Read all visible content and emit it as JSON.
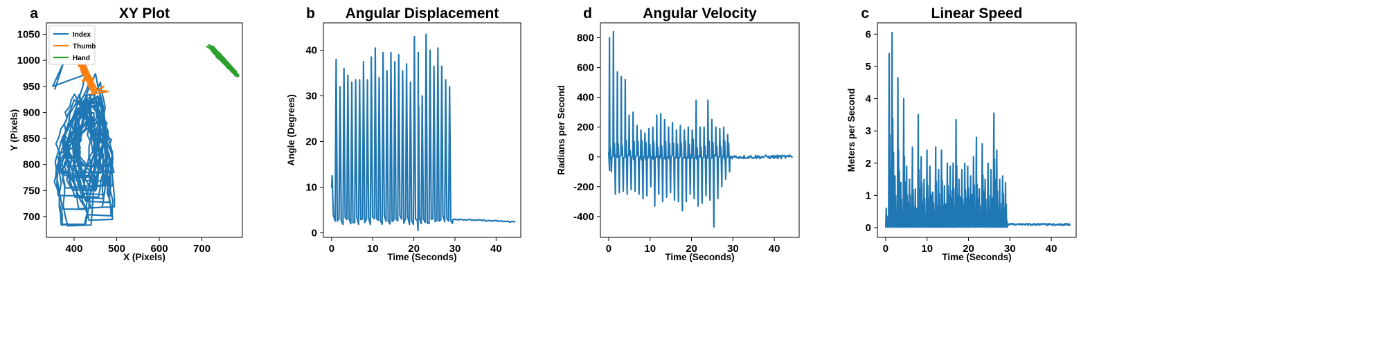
{
  "chart_data": [
    {
      "type": "line",
      "letter": "a",
      "title": "XY Plot",
      "xlabel": "X (Pixels)",
      "ylabel": "Y (Pixels)",
      "xlim": [
        335,
        795
      ],
      "ylim": [
        660,
        1072
      ],
      "xticks": [
        400,
        500,
        600,
        700
      ],
      "yticks": [
        700,
        750,
        800,
        850,
        900,
        950,
        1000,
        1050
      ],
      "legend_position": "top-left",
      "series": [
        {
          "name": "Index",
          "color": "#1f77b4",
          "kind": "index_trace"
        },
        {
          "name": "Thumb",
          "color": "#ff7f0e",
          "kind": "thumb_trace"
        },
        {
          "name": "Hand",
          "color": "#2ca02c",
          "kind": "hand_trace"
        }
      ]
    },
    {
      "type": "line",
      "letter": "b",
      "title": "Angular Displacement",
      "xlabel": "Time (Seconds)",
      "ylabel": "Angle (Degrees)",
      "xlim": [
        -2,
        46
      ],
      "ylim": [
        -1,
        46
      ],
      "xticks": [
        0,
        10,
        20,
        30,
        40
      ],
      "yticks": [
        0,
        10,
        20,
        30,
        40
      ],
      "series": [
        {
          "color": "#1f77b4",
          "kind": "angle_trace",
          "peaks": [
            12.5,
            38,
            32,
            36,
            34.5,
            33,
            33.5,
            33.5,
            37.5,
            33.5,
            38.5,
            40.5,
            34,
            39.5,
            35.5,
            39.5,
            37.5,
            39,
            35.5,
            37,
            33,
            43,
            39.5,
            30,
            43.5,
            40,
            36.5,
            40.5,
            36.5,
            33.5,
            32
          ],
          "active_end": 29.5,
          "baseline_after": 3.0,
          "baseline_end": 2.4
        }
      ]
    },
    {
      "type": "line",
      "letter": "d",
      "title": "Angular Velocity",
      "xlabel": "Time (Seconds)",
      "ylabel": "Radians per Second",
      "xlim": [
        -2,
        46
      ],
      "ylim": [
        -540,
        900
      ],
      "xticks": [
        0,
        10,
        20,
        30,
        40
      ],
      "yticks": [
        -400,
        -200,
        0,
        200,
        400,
        600,
        800
      ],
      "series": [
        {
          "color": "#1f77b4",
          "kind": "velocity_trace",
          "pos_peaks": [
            800,
            840,
            570,
            540,
            520,
            280,
            300,
            210,
            180,
            160,
            190,
            200,
            280,
            290,
            250,
            200,
            230,
            180,
            210,
            180,
            200,
            180,
            380,
            200,
            200,
            380,
            250,
            200,
            190,
            200,
            150
          ],
          "neg_peaks": [
            -100,
            -250,
            -240,
            -230,
            -250,
            -220,
            -230,
            -250,
            -280,
            -260,
            -200,
            -330,
            -250,
            -300,
            -270,
            -240,
            -290,
            -300,
            -360,
            -300,
            -250,
            -280,
            -330,
            -310,
            -260,
            -290,
            -470,
            -280,
            -200,
            -150,
            -100
          ],
          "active_end": 29.5
        }
      ]
    },
    {
      "type": "line",
      "letter": "c",
      "title": "Linear Speed",
      "xlabel": "Time (Seconds)",
      "ylabel": "Meters per Second",
      "xlim": [
        -2,
        46
      ],
      "ylim": [
        -0.3,
        6.35
      ],
      "xticks": [
        0,
        10,
        20,
        30,
        40
      ],
      "yticks": [
        0,
        1,
        2,
        3,
        4,
        5,
        6
      ],
      "series": [
        {
          "color": "#1f77b4",
          "kind": "speed_trace",
          "peaks": [
            0.6,
            5.4,
            6.05,
            1.6,
            4.65,
            1.4,
            4.0,
            1.9,
            1.5,
            2.5,
            1.2,
            3.5,
            2.2,
            1.5,
            2.4,
            1.9,
            1.1,
            2.5,
            1.8,
            2.4,
            1.3,
            2.0,
            1.9,
            2.0,
            3.35,
            1.5,
            1.8,
            2.0,
            1.9,
            1.6,
            2.2,
            2.8,
            1.2,
            2.6,
            1.5,
            2.0,
            1.8,
            3.55,
            2.4,
            1.5,
            1.6,
            1.4
          ],
          "active_end": 29.5,
          "baseline_after": 0.07
        }
      ]
    }
  ]
}
